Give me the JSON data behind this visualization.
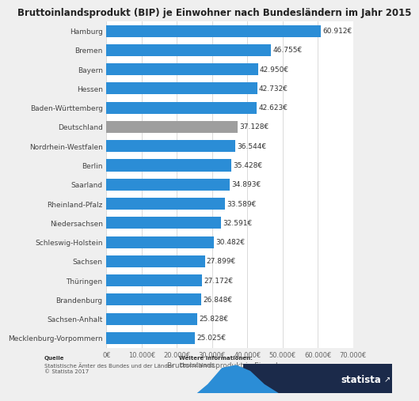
{
  "title": "Bruttoinlandsprodukt (BIP) je Einwohner nach Bundesländern im Jahr 2015",
  "categories": [
    "Hamburg",
    "Bremen",
    "Bayern",
    "Hessen",
    "Baden-Württemberg",
    "Deutschland",
    "Nordrhein-Westfalen",
    "Berlin",
    "Saarland",
    "Rheinland-Pfalz",
    "Niedersachsen",
    "Schleswig-Holstein",
    "Sachsen",
    "Thüringen",
    "Brandenburg",
    "Sachsen-Anhalt",
    "Mecklenburg-Vorpommern"
  ],
  "values": [
    60912,
    46755,
    42950,
    42732,
    42623,
    37128,
    36544,
    35428,
    34893,
    33589,
    32591,
    30482,
    27899,
    27172,
    26848,
    25828,
    25025
  ],
  "labels": [
    "60.912€",
    "46.755€",
    "42.950€",
    "42.732€",
    "42.623€",
    "37.128€",
    "36.544€",
    "35.428€",
    "34.893€",
    "33.589€",
    "32.591€",
    "30.482€",
    "27.899€",
    "27.172€",
    "26.848€",
    "25.828€",
    "25.025€"
  ],
  "bar_colors": [
    "#2b8dd6",
    "#2b8dd6",
    "#2b8dd6",
    "#2b8dd6",
    "#2b8dd6",
    "#9e9e9e",
    "#2b8dd6",
    "#2b8dd6",
    "#2b8dd6",
    "#2b8dd6",
    "#2b8dd6",
    "#2b8dd6",
    "#2b8dd6",
    "#2b8dd6",
    "#2b8dd6",
    "#2b8dd6",
    "#2b8dd6"
  ],
  "xlim": [
    0,
    70000
  ],
  "xlabel": "Bruttoinlandsprodukt je Einwohner",
  "xticks": [
    0,
    10000,
    20000,
    30000,
    40000,
    50000,
    60000,
    70000
  ],
  "xtick_labels": [
    "0€",
    "10.000€",
    "20.000€",
    "30.000€",
    "40.000€",
    "50.000€",
    "60.000€",
    "70.000€"
  ],
  "bg_color": "#efefef",
  "plot_bg_color": "#ffffff",
  "source_bold": "Quelle",
  "source_normal": "Statistische Ämter des Bundes und der Länder\n© Statista 2017",
  "further_info_bold": "Weitere Informationen:",
  "further_info_normal": "Deutschland",
  "title_fontsize": 8.5,
  "label_fontsize": 6.5,
  "tick_fontsize": 6.0,
  "xlabel_fontsize": 6.5,
  "footer_fontsize": 5.0
}
